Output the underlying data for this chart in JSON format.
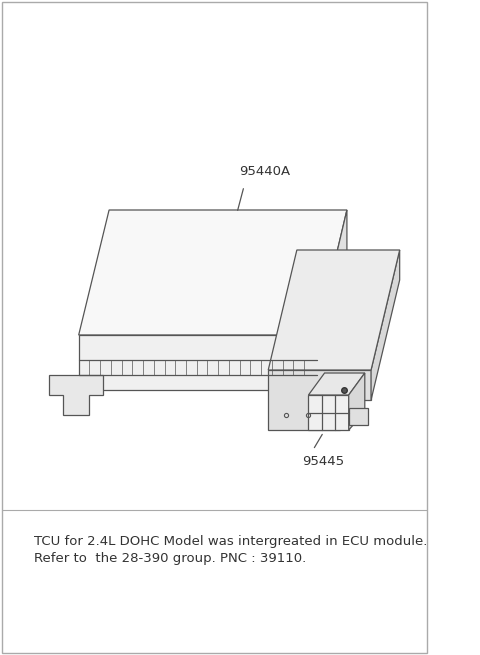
{
  "bg_color": "#ffffff",
  "line_color": "#555555",
  "text_color": "#333333",
  "label_95440A": "95440A",
  "label_95445": "95445",
  "note_line1": "TCU for 2.4L DOHC Model was intergreated in ECU module.",
  "note_line2": "Refer to  the 28-390 group. PNC : 39110.",
  "note_fontsize": 9.5,
  "label_fontsize": 9.5,
  "fig_width": 4.8,
  "fig_height": 6.55,
  "dpi": 100
}
